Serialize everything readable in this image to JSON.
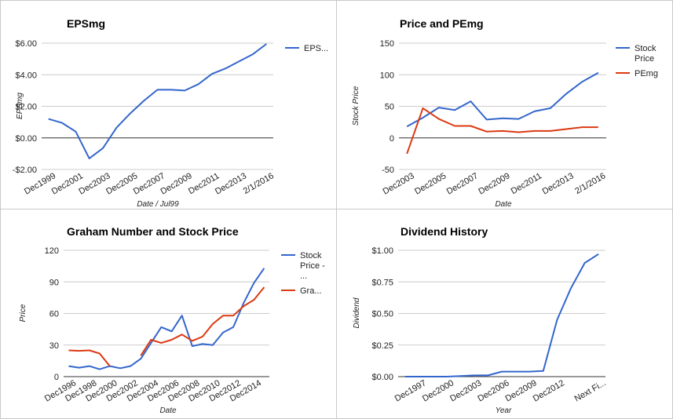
{
  "chart_data": [
    {
      "type": "line",
      "title": "EPSmg",
      "xlabel": "Date / Jul99",
      "ylabel": "EPSmg",
      "ylim": [
        -2,
        6
      ],
      "yticks": [
        6,
        4,
        2,
        0,
        -2
      ],
      "ytick_labels": [
        "$6.00",
        "$4.00",
        "$2.00",
        "$0.00",
        "-$2.00"
      ],
      "x": [
        "Dec1999",
        "Dec2000",
        "Dec2001",
        "Dec2002",
        "Dec2003",
        "Dec2004",
        "Dec2005",
        "Dec2006",
        "Dec2007",
        "Dec2008",
        "Dec2009",
        "Dec2010",
        "Dec2011",
        "Dec2012",
        "Dec2013",
        "Dec2014",
        "2/1/2016"
      ],
      "xtick_labels": [
        "Dec1999",
        "",
        "Dec2001",
        "",
        "Dec2003",
        "",
        "Dec2005",
        "",
        "Dec2007",
        "",
        "Dec2009",
        "",
        "Dec2011",
        "",
        "Dec2013",
        "",
        "2/1/2016"
      ],
      "series": [
        {
          "name": "EPS...",
          "color": "#3366cc",
          "values": [
            1.2,
            0.95,
            0.4,
            -1.3,
            -0.65,
            0.65,
            1.55,
            2.35,
            3.05,
            3.05,
            3.0,
            3.4,
            4.05,
            4.4,
            4.85,
            5.3,
            5.95
          ]
        }
      ],
      "legend": "right"
    },
    {
      "type": "line",
      "title": "Price and PEmg",
      "xlabel": "Date",
      "ylabel": "Stock Price",
      "ylim": [
        -50,
        150
      ],
      "yticks": [
        150,
        100,
        50,
        0,
        -50
      ],
      "ytick_labels": [
        "150",
        "100",
        "50",
        "0",
        "-50"
      ],
      "x": [
        "Dec2003",
        "Dec2004",
        "Dec2005",
        "Dec2006",
        "Dec2007",
        "Dec2008",
        "Dec2009",
        "Dec2010",
        "Dec2011",
        "Dec2012",
        "Dec2013",
        "Dec2014",
        "2/1/2016"
      ],
      "xtick_labels": [
        "Dec2003",
        "",
        "Dec2005",
        "",
        "Dec2007",
        "",
        "Dec2009",
        "",
        "Dec2011",
        "",
        "Dec2013",
        "",
        "2/1/2016"
      ],
      "series": [
        {
          "name": "Stock Price",
          "color": "#3366cc",
          "values": [
            18,
            32,
            48,
            44,
            58,
            29,
            31,
            30,
            42,
            47,
            70,
            89,
            103
          ]
        },
        {
          "name": "PEmg",
          "color": "#dc3912",
          "values": [
            -25,
            47,
            30,
            19,
            19,
            10,
            11,
            9,
            11,
            11,
            14,
            17,
            17
          ]
        }
      ],
      "legend": "right"
    },
    {
      "type": "line",
      "title": "Graham Number and Stock Price",
      "xlabel": "Date",
      "ylabel": "Price",
      "ylim": [
        0,
        120
      ],
      "yticks": [
        120,
        90,
        60,
        30,
        0
      ],
      "ytick_labels": [
        "120",
        "90",
        "60",
        "30",
        "0"
      ],
      "x": [
        "Dec1996",
        "Dec1997",
        "Dec1998",
        "Dec1999",
        "Dec2000",
        "Dec2001",
        "Dec2002",
        "Dec2003",
        "Dec2004",
        "Dec2005",
        "Dec2006",
        "Dec2007",
        "Dec2008",
        "Dec2009",
        "Dec2010",
        "Dec2011",
        "Dec2012",
        "Dec2013",
        "Dec2014",
        "2/1/2016"
      ],
      "xtick_labels": [
        "Dec1996",
        "",
        "Dec1998",
        "",
        "Dec2000",
        "",
        "Dec2002",
        "",
        "Dec2004",
        "",
        "Dec2006",
        "",
        "Dec2008",
        "",
        "Dec2010",
        "",
        "Dec2012",
        "",
        "Dec2014",
        ""
      ],
      "series": [
        {
          "name": "Stock Price - ...",
          "color": "#3366cc",
          "values": [
            10,
            8.5,
            10,
            7,
            10,
            8,
            10,
            17,
            32,
            47,
            43,
            58,
            29,
            31,
            30,
            42,
            47,
            70,
            89,
            103
          ]
        },
        {
          "name": "Gra...",
          "color": "#dc3912",
          "values": [
            null,
            null,
            null,
            null,
            null,
            null,
            null,
            20,
            35,
            32,
            35,
            40,
            34,
            38,
            50,
            58,
            58,
            67,
            73,
            85
          ]
        },
        {
          "name": "Gra...",
          "color": "#dc3912",
          "values": [
            25,
            24.5,
            25,
            22,
            10,
            null,
            null,
            null,
            null,
            null,
            null,
            null,
            null,
            null,
            null,
            null,
            null,
            null,
            null,
            null
          ],
          "hide_legend": true
        }
      ],
      "legend": "right"
    },
    {
      "type": "line",
      "title": "Dividend History",
      "xlabel": "Year",
      "ylabel": "Dividend",
      "ylim": [
        0,
        1
      ],
      "yticks": [
        1,
        0.75,
        0.5,
        0.25,
        0
      ],
      "ytick_labels": [
        "$1.00",
        "$0.75",
        "$0.50",
        "$0.25",
        "$0.00"
      ],
      "x": [
        "1996",
        "Dec1997",
        "1999",
        "Dec2000",
        "2002",
        "Dec2003",
        "2005",
        "Dec2006",
        "2008",
        "Dec2009",
        "2011",
        "Dec2012",
        "2013",
        "2014",
        "Next Fi..."
      ],
      "xtick_labels": [
        "",
        "Dec1997",
        "",
        "Dec2000",
        "",
        "Dec2003",
        "",
        "Dec2006",
        "",
        "Dec2009",
        "",
        "Dec2012",
        "",
        "",
        "Next Fi..."
      ],
      "series": [
        {
          "name": "Dividend",
          "color": "#3366cc",
          "values": [
            0,
            0,
            0,
            0,
            0.005,
            0.01,
            0.01,
            0.04,
            0.04,
            0.04,
            0.045,
            0.45,
            0.7,
            0.9,
            0.97
          ],
          "hide_legend": true
        }
      ],
      "legend": "none"
    }
  ]
}
